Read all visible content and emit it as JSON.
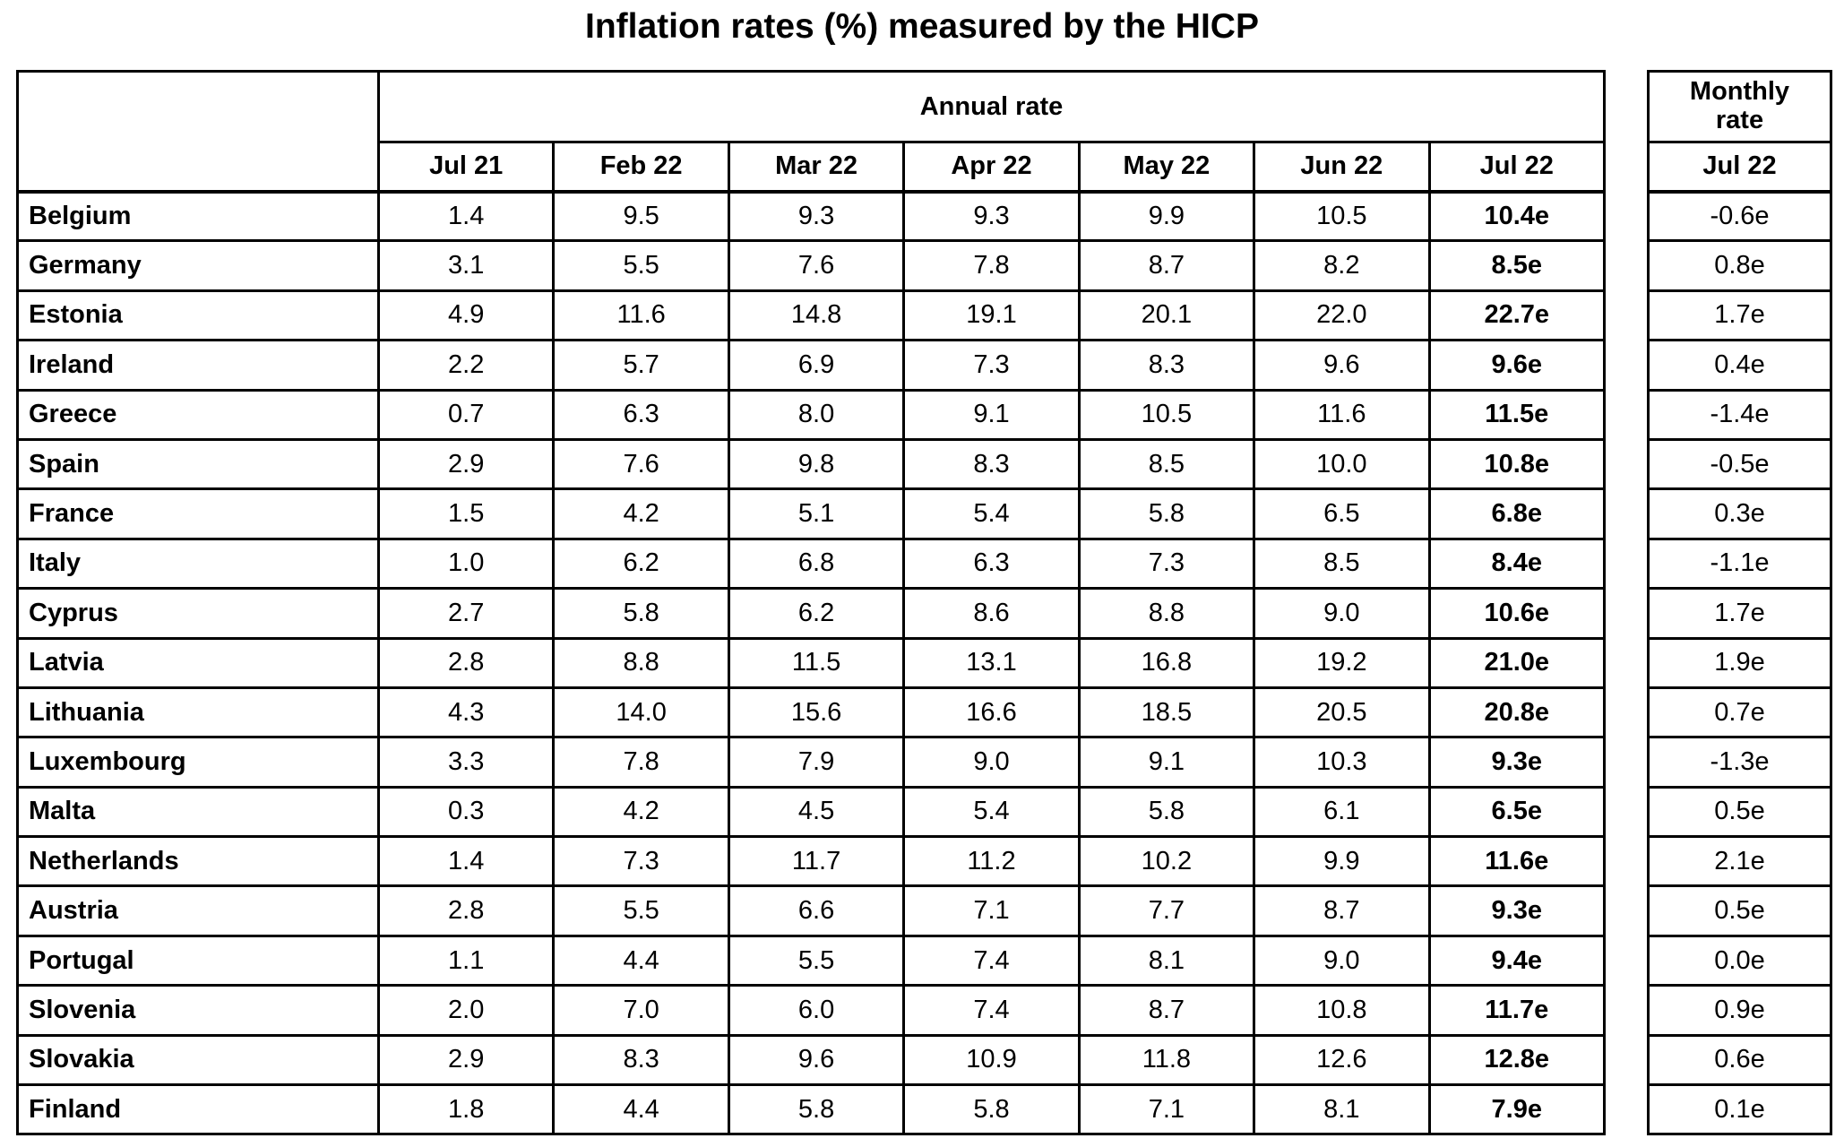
{
  "title": "Inflation rates (%) measured by the HICP",
  "headers": {
    "annual_group": "Annual rate",
    "annual_months": [
      "Jul 21",
      "Feb 22",
      "Mar 22",
      "Apr 22",
      "May 22",
      "Jun 22",
      "Jul 22"
    ],
    "monthly_group": "Monthly rate",
    "monthly_month": "Jul 22"
  },
  "countries": [
    {
      "name": "Belgium",
      "annual": [
        "1.4",
        "9.5",
        "9.3",
        "9.3",
        "9.9",
        "10.5",
        "10.4e"
      ],
      "monthly": "-0.6e"
    },
    {
      "name": "Germany",
      "annual": [
        "3.1",
        "5.5",
        "7.6",
        "7.8",
        "8.7",
        "8.2",
        "8.5e"
      ],
      "monthly": "0.8e"
    },
    {
      "name": "Estonia",
      "annual": [
        "4.9",
        "11.6",
        "14.8",
        "19.1",
        "20.1",
        "22.0",
        "22.7e"
      ],
      "monthly": "1.7e"
    },
    {
      "name": "Ireland",
      "annual": [
        "2.2",
        "5.7",
        "6.9",
        "7.3",
        "8.3",
        "9.6",
        "9.6e"
      ],
      "monthly": "0.4e"
    },
    {
      "name": "Greece",
      "annual": [
        "0.7",
        "6.3",
        "8.0",
        "9.1",
        "10.5",
        "11.6",
        "11.5e"
      ],
      "monthly": "-1.4e"
    },
    {
      "name": "Spain",
      "annual": [
        "2.9",
        "7.6",
        "9.8",
        "8.3",
        "8.5",
        "10.0",
        "10.8e"
      ],
      "monthly": "-0.5e"
    },
    {
      "name": "France",
      "annual": [
        "1.5",
        "4.2",
        "5.1",
        "5.4",
        "5.8",
        "6.5",
        "6.8e"
      ],
      "monthly": "0.3e"
    },
    {
      "name": "Italy",
      "annual": [
        "1.0",
        "6.2",
        "6.8",
        "6.3",
        "7.3",
        "8.5",
        "8.4e"
      ],
      "monthly": "-1.1e"
    },
    {
      "name": "Cyprus",
      "annual": [
        "2.7",
        "5.8",
        "6.2",
        "8.6",
        "8.8",
        "9.0",
        "10.6e"
      ],
      "monthly": "1.7e"
    },
    {
      "name": "Latvia",
      "annual": [
        "2.8",
        "8.8",
        "11.5",
        "13.1",
        "16.8",
        "19.2",
        "21.0e"
      ],
      "monthly": "1.9e"
    },
    {
      "name": "Lithuania",
      "annual": [
        "4.3",
        "14.0",
        "15.6",
        "16.6",
        "18.5",
        "20.5",
        "20.8e"
      ],
      "monthly": "0.7e"
    },
    {
      "name": "Luxembourg",
      "annual": [
        "3.3",
        "7.8",
        "7.9",
        "9.0",
        "9.1",
        "10.3",
        "9.3e"
      ],
      "monthly": "-1.3e"
    },
    {
      "name": "Malta",
      "annual": [
        "0.3",
        "4.2",
        "4.5",
        "5.4",
        "5.8",
        "6.1",
        "6.5e"
      ],
      "monthly": "0.5e"
    },
    {
      "name": "Netherlands",
      "annual": [
        "1.4",
        "7.3",
        "11.7",
        "11.2",
        "10.2",
        "9.9",
        "11.6e"
      ],
      "monthly": "2.1e"
    },
    {
      "name": "Austria",
      "annual": [
        "2.8",
        "5.5",
        "6.6",
        "7.1",
        "7.7",
        "8.7",
        "9.3e"
      ],
      "monthly": "0.5e"
    },
    {
      "name": "Portugal",
      "annual": [
        "1.1",
        "4.4",
        "5.5",
        "7.4",
        "8.1",
        "9.0",
        "9.4e"
      ],
      "monthly": "0.0e"
    },
    {
      "name": "Slovenia",
      "annual": [
        "2.0",
        "7.0",
        "6.0",
        "7.4",
        "8.7",
        "10.8",
        "11.7e"
      ],
      "monthly": "0.9e"
    },
    {
      "name": "Slovakia",
      "annual": [
        "2.9",
        "8.3",
        "9.6",
        "10.9",
        "11.8",
        "12.6",
        "12.8e"
      ],
      "monthly": "0.6e"
    },
    {
      "name": "Finland",
      "annual": [
        "1.8",
        "4.4",
        "5.8",
        "5.8",
        "7.1",
        "8.1",
        "7.9e"
      ],
      "monthly": "0.1e"
    }
  ],
  "colors": {
    "text": "#000000",
    "background": "#ffffff",
    "border": "#000000"
  }
}
